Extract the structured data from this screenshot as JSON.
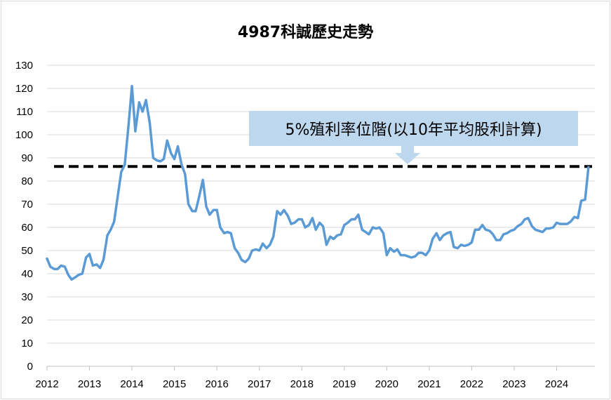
{
  "chart_data": {
    "type": "line",
    "title": "4987科誠歷史走勢",
    "xlabel": "",
    "ylabel": "",
    "x_tick_labels": [
      "2012",
      "2013",
      "2014",
      "2015",
      "2016",
      "2017",
      "2018",
      "2019",
      "2020",
      "2021",
      "2022",
      "2023",
      "2024"
    ],
    "y_tick_labels": [
      "0",
      "10",
      "20",
      "30",
      "40",
      "50",
      "60",
      "70",
      "80",
      "90",
      "100",
      "110",
      "120",
      "130"
    ],
    "xlim": [
      2012,
      2024.9
    ],
    "ylim": [
      0,
      130
    ],
    "grid": true,
    "legend": "none",
    "series": [
      {
        "color": "#5b9bd5",
        "points": [
          [
            2012.0,
            46.5
          ],
          [
            2012.08,
            43
          ],
          [
            2012.17,
            42
          ],
          [
            2012.25,
            42
          ],
          [
            2012.33,
            43.5
          ],
          [
            2012.42,
            43
          ],
          [
            2012.5,
            39.5
          ],
          [
            2012.58,
            37.5
          ],
          [
            2012.67,
            38.5
          ],
          [
            2012.75,
            39.5
          ],
          [
            2012.83,
            40
          ],
          [
            2012.92,
            47
          ],
          [
            2013.0,
            48.5
          ],
          [
            2013.08,
            43.5
          ],
          [
            2013.17,
            44
          ],
          [
            2013.25,
            42.5
          ],
          [
            2013.33,
            46
          ],
          [
            2013.42,
            56.5
          ],
          [
            2013.5,
            59
          ],
          [
            2013.58,
            62.5
          ],
          [
            2013.67,
            74
          ],
          [
            2013.75,
            84
          ],
          [
            2013.83,
            87
          ],
          [
            2013.92,
            104
          ],
          [
            2014.0,
            121
          ],
          [
            2014.08,
            101.5
          ],
          [
            2014.17,
            114
          ],
          [
            2014.25,
            110
          ],
          [
            2014.33,
            115
          ],
          [
            2014.42,
            105
          ],
          [
            2014.5,
            90
          ],
          [
            2014.58,
            89
          ],
          [
            2014.67,
            88.5
          ],
          [
            2014.75,
            89.5
          ],
          [
            2014.83,
            97.5
          ],
          [
            2014.92,
            92
          ],
          [
            2015.0,
            89.5
          ],
          [
            2015.08,
            95
          ],
          [
            2015.17,
            87
          ],
          [
            2015.25,
            83
          ],
          [
            2015.33,
            70
          ],
          [
            2015.42,
            67
          ],
          [
            2015.5,
            67
          ],
          [
            2015.58,
            73
          ],
          [
            2015.67,
            80.5
          ],
          [
            2015.75,
            69
          ],
          [
            2015.83,
            65.5
          ],
          [
            2015.92,
            67.5
          ],
          [
            2016.0,
            67.5
          ],
          [
            2016.08,
            60
          ],
          [
            2016.17,
            57.5
          ],
          [
            2016.25,
            58
          ],
          [
            2016.33,
            57.5
          ],
          [
            2016.42,
            51
          ],
          [
            2016.5,
            49
          ],
          [
            2016.58,
            46
          ],
          [
            2016.67,
            45
          ],
          [
            2016.75,
            46.5
          ],
          [
            2016.83,
            50
          ],
          [
            2016.92,
            50.5
          ],
          [
            2017.0,
            50
          ],
          [
            2017.08,
            53
          ],
          [
            2017.17,
            51
          ],
          [
            2017.25,
            52.5
          ],
          [
            2017.33,
            56
          ],
          [
            2017.42,
            67
          ],
          [
            2017.5,
            65.5
          ],
          [
            2017.58,
            67.5
          ],
          [
            2017.67,
            65
          ],
          [
            2017.75,
            61.5
          ],
          [
            2017.83,
            62
          ],
          [
            2017.92,
            63.5
          ],
          [
            2018.0,
            63.5
          ],
          [
            2018.08,
            60
          ],
          [
            2018.17,
            61
          ],
          [
            2018.25,
            64
          ],
          [
            2018.33,
            59
          ],
          [
            2018.42,
            62
          ],
          [
            2018.5,
            60.5
          ],
          [
            2018.58,
            52.5
          ],
          [
            2018.67,
            56
          ],
          [
            2018.75,
            55
          ],
          [
            2018.83,
            56.5
          ],
          [
            2018.92,
            57
          ],
          [
            2019.0,
            61
          ],
          [
            2019.08,
            62
          ],
          [
            2019.17,
            63.5
          ],
          [
            2019.25,
            63.5
          ],
          [
            2019.33,
            65.5
          ],
          [
            2019.42,
            59
          ],
          [
            2019.5,
            58
          ],
          [
            2019.58,
            57
          ],
          [
            2019.67,
            60
          ],
          [
            2019.75,
            59.5
          ],
          [
            2019.83,
            60
          ],
          [
            2019.92,
            57.5
          ],
          [
            2020.0,
            48
          ],
          [
            2020.08,
            51
          ],
          [
            2020.17,
            49.5
          ],
          [
            2020.25,
            50.5
          ],
          [
            2020.33,
            48
          ],
          [
            2020.42,
            48
          ],
          [
            2020.5,
            47.5
          ],
          [
            2020.58,
            47
          ],
          [
            2020.67,
            47.5
          ],
          [
            2020.75,
            49
          ],
          [
            2020.83,
            49
          ],
          [
            2020.92,
            48
          ],
          [
            2021.0,
            50
          ],
          [
            2021.08,
            55
          ],
          [
            2021.17,
            57.5
          ],
          [
            2021.25,
            54.5
          ],
          [
            2021.33,
            56.5
          ],
          [
            2021.42,
            57.5
          ],
          [
            2021.5,
            58
          ],
          [
            2021.58,
            51.5
          ],
          [
            2021.67,
            51
          ],
          [
            2021.75,
            52.5
          ],
          [
            2021.83,
            52
          ],
          [
            2021.92,
            52.5
          ],
          [
            2022.0,
            53.5
          ],
          [
            2022.08,
            59
          ],
          [
            2022.17,
            59
          ],
          [
            2022.25,
            61
          ],
          [
            2022.33,
            59
          ],
          [
            2022.42,
            58.5
          ],
          [
            2022.5,
            57
          ],
          [
            2022.58,
            54.5
          ],
          [
            2022.67,
            54.5
          ],
          [
            2022.75,
            57
          ],
          [
            2022.83,
            57.5
          ],
          [
            2022.92,
            58.5
          ],
          [
            2023.0,
            59
          ],
          [
            2023.08,
            60.5
          ],
          [
            2023.17,
            61.5
          ],
          [
            2023.25,
            63.5
          ],
          [
            2023.33,
            64
          ],
          [
            2023.42,
            60.5
          ],
          [
            2023.5,
            59
          ],
          [
            2023.58,
            58.5
          ],
          [
            2023.67,
            58
          ],
          [
            2023.75,
            59.5
          ],
          [
            2023.83,
            59.5
          ],
          [
            2023.92,
            60
          ],
          [
            2024.0,
            62
          ],
          [
            2024.08,
            61.5
          ],
          [
            2024.17,
            61.5
          ],
          [
            2024.25,
            61.5
          ],
          [
            2024.33,
            62.5
          ],
          [
            2024.42,
            64.5
          ],
          [
            2024.5,
            64
          ],
          [
            2024.58,
            71.5
          ],
          [
            2024.67,
            72
          ],
          [
            2024.75,
            86
          ]
        ]
      }
    ],
    "reference_line": {
      "value": 86.3,
      "style": "dashed",
      "color": "#000000"
    },
    "annotation": {
      "text": "5%殖利率位階(以10年平均股利計算)",
      "background": "#bdd7ee"
    },
    "colors": {
      "line": "#5b9bd5",
      "grid": "#d9d9d9",
      "axis": "#bfbfbf",
      "reference": "#000000",
      "callout": "#bdd7ee"
    }
  }
}
